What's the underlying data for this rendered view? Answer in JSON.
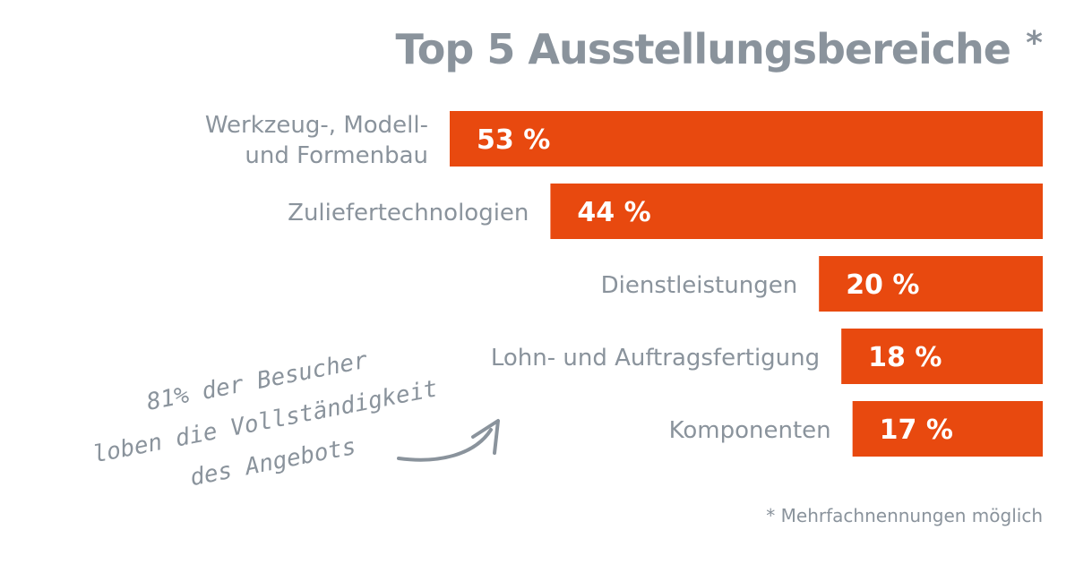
{
  "colors": {
    "accent": "#E8490F",
    "text_gray": "#8A939C",
    "white": "#ffffff"
  },
  "title": "Top 5 Ausstellungsbereiche",
  "title_mark": "*",
  "footnote": "* Mehrfachnennungen möglich",
  "note": {
    "lines": [
      "81% der Besucher",
      "loben die Vollständigkeit",
      "des Angebots"
    ]
  },
  "chart_data": {
    "type": "bar",
    "orientation": "horizontal",
    "title": "Top 5 Ausstellungsbereiche",
    "categories": [
      [
        "Werkzeug-, Modell-",
        "und Formenbau"
      ],
      [
        "Zuliefertechnologien"
      ],
      [
        "Dienstleistungen"
      ],
      [
        "Lohn- und Auftragsfertigung"
      ],
      [
        "Komponenten"
      ]
    ],
    "values": [
      53,
      44,
      20,
      18,
      17
    ],
    "value_labels": [
      "53 %",
      "44 %",
      "20 %",
      "18 %",
      "17 %"
    ],
    "unit": "%",
    "bar_alignment": "right",
    "grid": false,
    "legend": "none"
  }
}
